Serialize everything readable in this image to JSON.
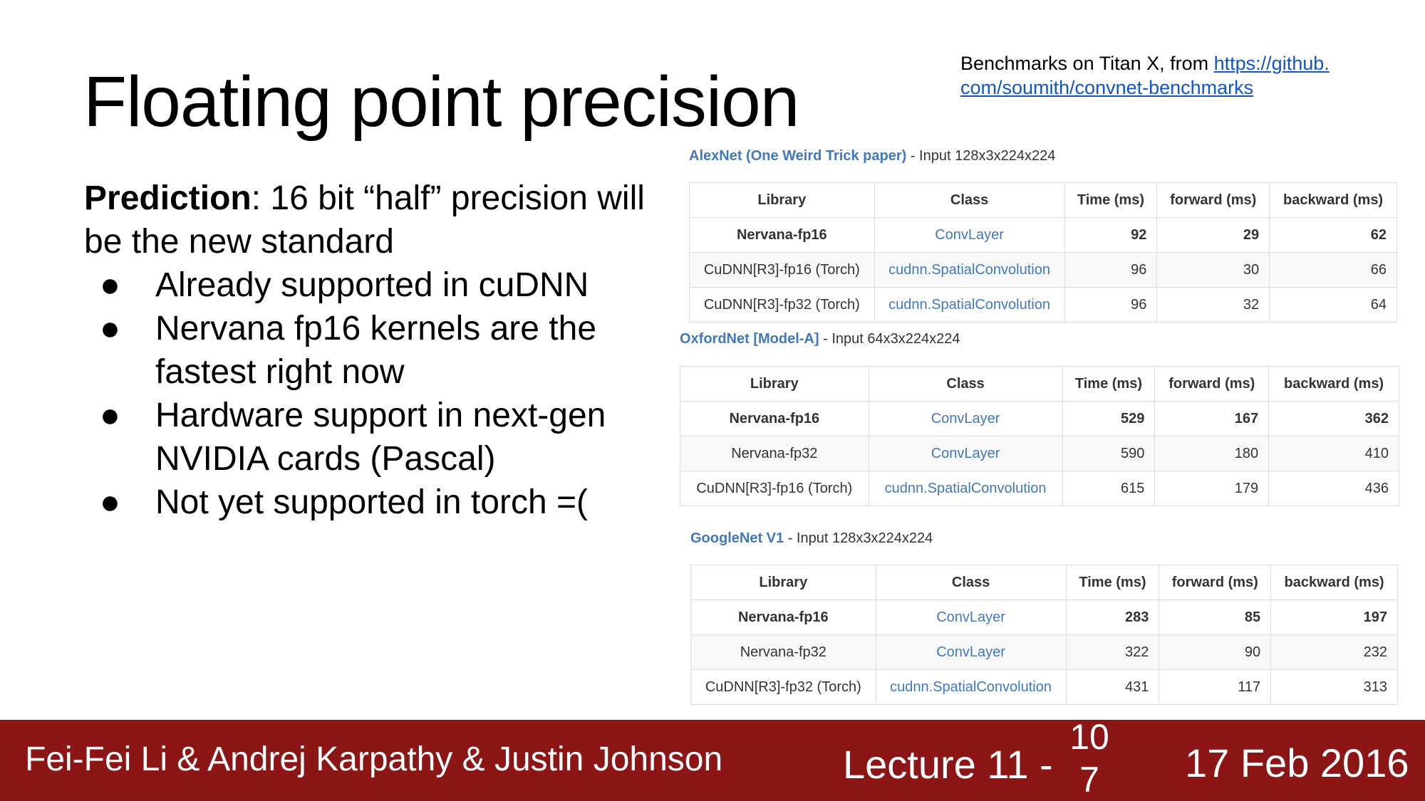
{
  "slide": {
    "title": "Floating point precision",
    "source_prefix": "Benchmarks on Titan X, from ",
    "source_link": "https://github.com/soumith/convnet-benchmarks",
    "source_link_line1": "https://github.",
    "source_link_line2": "com/soumith/convnet-benchmarks",
    "prediction_label": "Prediction",
    "prediction_text": ": 16 bit “half” precision will be the new standard",
    "bullets": [
      "Already supported in cuDNN",
      "Nervana fp16 kernels are the fastest right now",
      "Hardware support in next-gen NVIDIA cards (Pascal)",
      "Not yet supported in torch =("
    ],
    "bullet_glyph": "●"
  },
  "benchmarks": [
    {
      "net": "AlexNet (One Weird Trick paper)",
      "input": " - Input 128x3x224x224",
      "headers": [
        "Library",
        "Class",
        "Time (ms)",
        "forward (ms)",
        "backward (ms)"
      ],
      "rows": [
        {
          "library": "Nervana-fp16",
          "class": "ConvLayer",
          "time": "92",
          "forward": "29",
          "backward": "62",
          "bold": true
        },
        {
          "library": "CuDNN[R3]-fp16 (Torch)",
          "class": "cudnn.SpatialConvolution",
          "time": "96",
          "forward": "30",
          "backward": "66",
          "bold": false
        },
        {
          "library": "CuDNN[R3]-fp32 (Torch)",
          "class": "cudnn.SpatialConvolution",
          "time": "96",
          "forward": "32",
          "backward": "64",
          "bold": false
        }
      ]
    },
    {
      "net": "OxfordNet [Model-A]",
      "input": " - Input 64x3x224x224",
      "headers": [
        "Library",
        "Class",
        "Time (ms)",
        "forward (ms)",
        "backward (ms)"
      ],
      "rows": [
        {
          "library": "Nervana-fp16",
          "class": "ConvLayer",
          "time": "529",
          "forward": "167",
          "backward": "362",
          "bold": true
        },
        {
          "library": "Nervana-fp32",
          "class": "ConvLayer",
          "time": "590",
          "forward": "180",
          "backward": "410",
          "bold": false
        },
        {
          "library": "CuDNN[R3]-fp16 (Torch)",
          "class": "cudnn.SpatialConvolution",
          "time": "615",
          "forward": "179",
          "backward": "436",
          "bold": false
        }
      ]
    },
    {
      "net": "GoogleNet V1",
      "input": " - Input 128x3x224x224",
      "headers": [
        "Library",
        "Class",
        "Time (ms)",
        "forward (ms)",
        "backward (ms)"
      ],
      "rows": [
        {
          "library": "Nervana-fp16",
          "class": "ConvLayer",
          "time": "283",
          "forward": "85",
          "backward": "197",
          "bold": true
        },
        {
          "library": "Nervana-fp32",
          "class": "ConvLayer",
          "time": "322",
          "forward": "90",
          "backward": "232",
          "bold": false
        },
        {
          "library": "CuDNN[R3]-fp32 (Torch)",
          "class": "cudnn.SpatialConvolution",
          "time": "431",
          "forward": "117",
          "backward": "313",
          "bold": false
        }
      ]
    }
  ],
  "footer": {
    "authors": "Fei-Fei Li & Andrej Karpathy & Justin Johnson",
    "lecture": "Lecture 11 -",
    "page_line1": "10",
    "page_line2": "7",
    "date": "17 Feb 2016",
    "background_color": "#8c1515"
  }
}
